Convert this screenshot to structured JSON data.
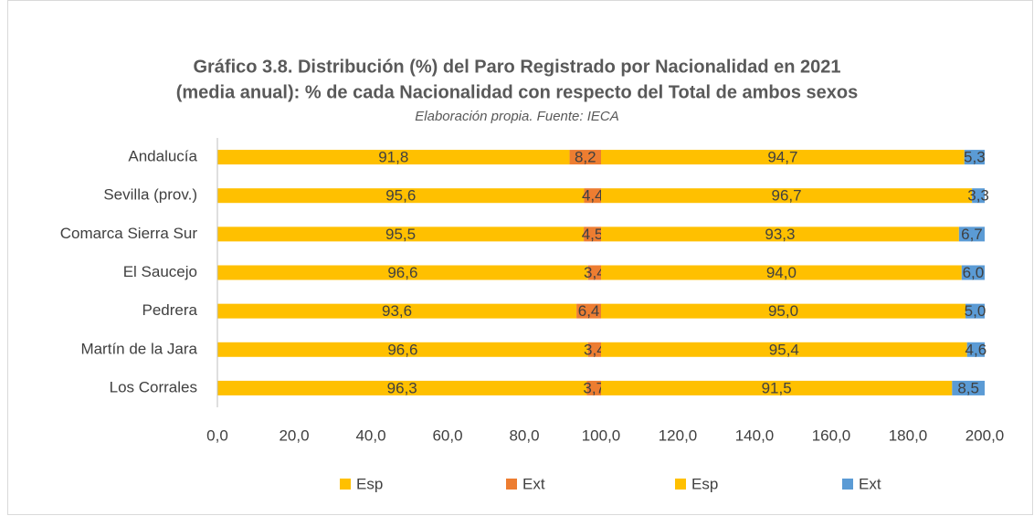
{
  "chart_data": {
    "type": "stacked-barh",
    "title": [
      "Gráfico 3.8. Distribución (%) del Paro Registrado por Nacionalidad en 2021",
      "(media anual): % de cada Nacionalidad con respecto del Total de ambos sexos"
    ],
    "subtitle": "Elaboración propia. Fuente: IECA",
    "categories": [
      "Andalucía",
      "Sevilla (prov.)",
      "Comarca Sierra Sur",
      "El Saucejo",
      "Pedrera",
      "Martín de la Jara",
      "Los Corrales"
    ],
    "series": [
      {
        "name": "Esp",
        "color": "#FFC000",
        "values": [
          91.8,
          95.6,
          95.5,
          96.6,
          93.6,
          96.6,
          96.3
        ],
        "value_labels": [
          "91,8",
          "95,6",
          "95,5",
          "96,6",
          "93,6",
          "96,6",
          "96,3"
        ]
      },
      {
        "name": "Ext",
        "color": "#ED7D31",
        "values": [
          8.2,
          4.4,
          4.5,
          3.4,
          6.4,
          3.4,
          3.7
        ],
        "value_labels": [
          "8,2",
          "4,4",
          "4,5",
          "3,4",
          "6,4",
          "3,4",
          "3,7"
        ]
      },
      {
        "name": "Esp",
        "color": "#FFC000",
        "values": [
          94.7,
          96.7,
          93.3,
          94.0,
          95.0,
          95.4,
          91.5
        ],
        "value_labels": [
          "94,7",
          "96,7",
          "93,3",
          "94,0",
          "95,0",
          "95,4",
          "91,5"
        ]
      },
      {
        "name": "Ext",
        "color": "#5B9BD5",
        "values": [
          5.3,
          3.3,
          6.7,
          6.0,
          5.0,
          4.6,
          8.5
        ],
        "value_labels": [
          "5,3",
          "3,3",
          "6,7",
          "6,0",
          "5,0",
          "4,6",
          "8,5"
        ]
      }
    ],
    "xlim": [
      0,
      200
    ],
    "xticks": [
      {
        "value": 0,
        "label": "0,0"
      },
      {
        "value": 20,
        "label": "20,0"
      },
      {
        "value": 40,
        "label": "40,0"
      },
      {
        "value": 60,
        "label": "60,0"
      },
      {
        "value": 80,
        "label": "80,0"
      },
      {
        "value": 100,
        "label": "100,0"
      },
      {
        "value": 120,
        "label": "120,0"
      },
      {
        "value": 140,
        "label": "140,0"
      },
      {
        "value": 160,
        "label": "160,0"
      },
      {
        "value": 180,
        "label": "180,0"
      },
      {
        "value": 200,
        "label": "200,0"
      }
    ],
    "grid": false,
    "legend": "bottom"
  }
}
